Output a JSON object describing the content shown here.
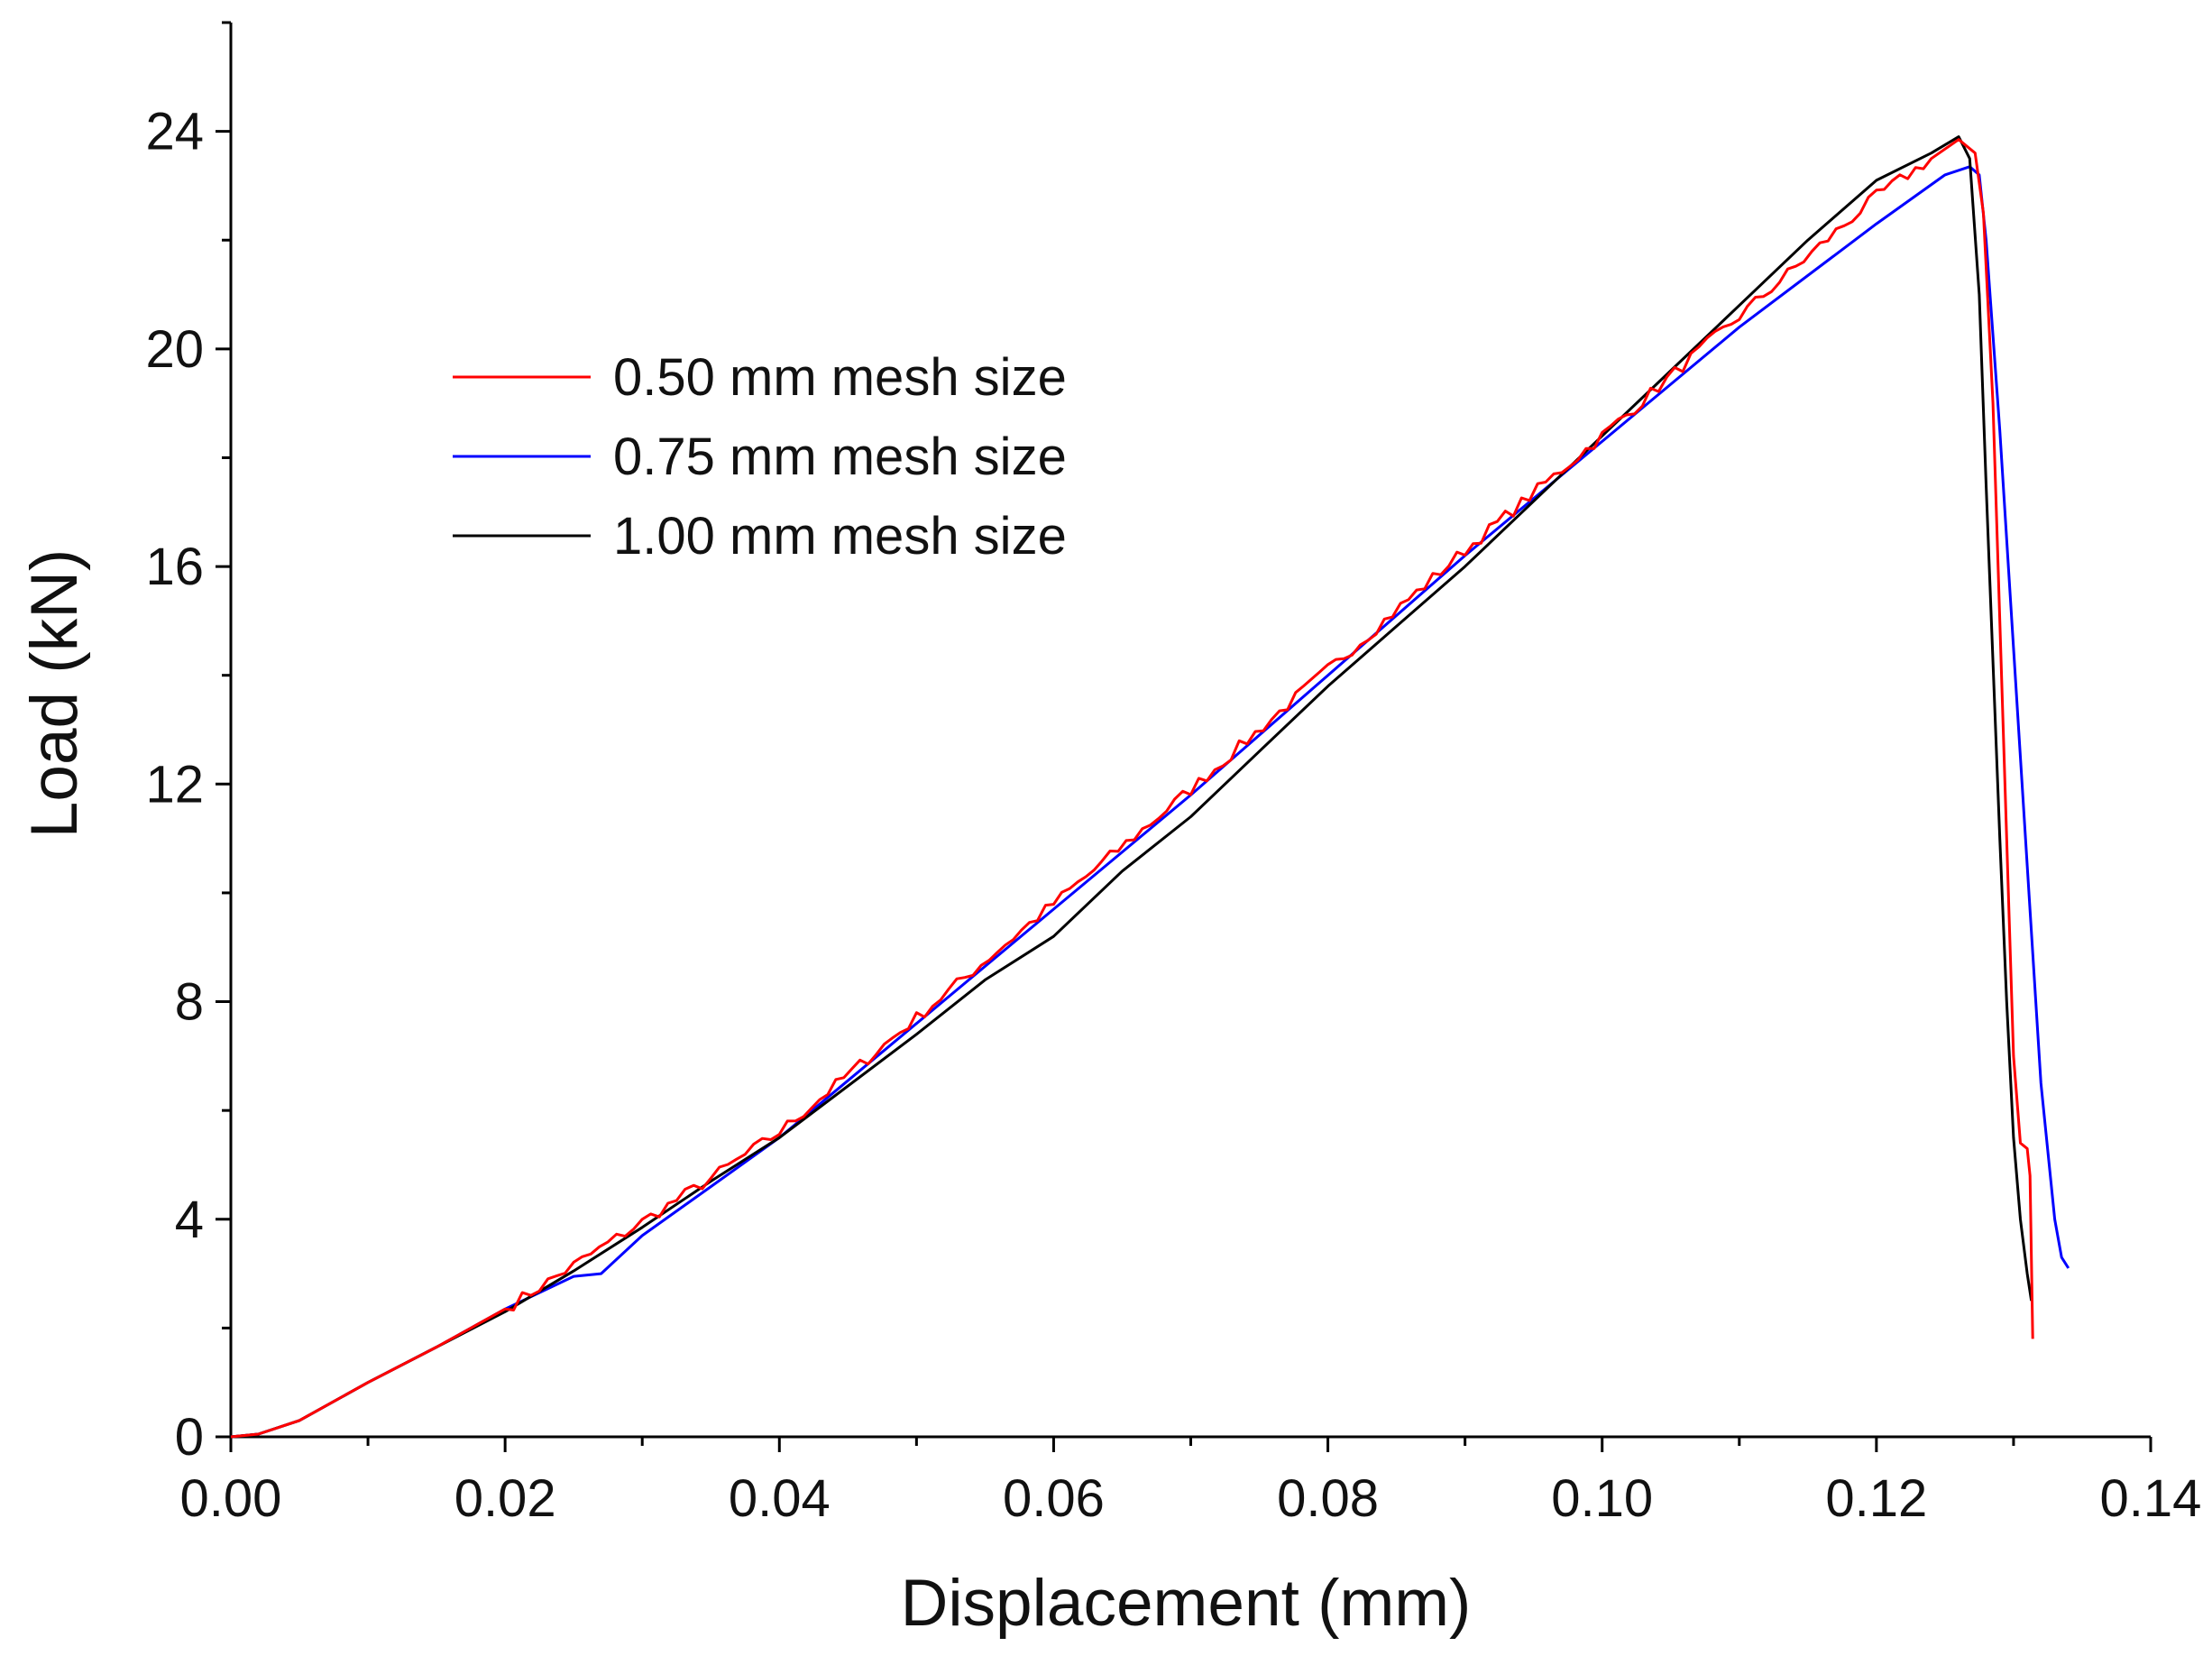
{
  "chart_data": {
    "type": "line",
    "title": "",
    "xlabel": "Displacement (mm)",
    "ylabel": "Load (kN)",
    "xlim": [
      0,
      0.14
    ],
    "ylim": [
      0,
      26
    ],
    "x_ticks": [
      0.0,
      0.02,
      0.04,
      0.06,
      0.08,
      0.1,
      0.12,
      0.14
    ],
    "x_tick_labels": [
      "0.00",
      "0.02",
      "0.04",
      "0.06",
      "0.08",
      "0.10",
      "0.12",
      "0.14"
    ],
    "y_ticks": [
      0,
      4,
      8,
      12,
      16,
      20,
      24
    ],
    "y_tick_labels": [
      "0",
      "4",
      "8",
      "12",
      "16",
      "20",
      "24"
    ],
    "x_minor_step": 0.01,
    "y_minor_step": 2,
    "grid": false,
    "legend_position": "upper-left",
    "series": [
      {
        "name": "0.50 mm mesh size",
        "color": "#ff0000",
        "noise": 0.12,
        "x": [
          0.0,
          0.002,
          0.005,
          0.01,
          0.015,
          0.02,
          0.025,
          0.03,
          0.035,
          0.04,
          0.05,
          0.06,
          0.07,
          0.08,
          0.09,
          0.1,
          0.11,
          0.12,
          0.124,
          0.126,
          0.1272,
          0.1278,
          0.1285,
          0.129,
          0.1295,
          0.13,
          0.1305,
          0.131,
          0.1312,
          0.1314
        ],
        "y": [
          0.0,
          0.05,
          0.3,
          1.0,
          1.65,
          2.35,
          3.15,
          3.95,
          4.75,
          5.6,
          7.7,
          9.8,
          11.9,
          14.1,
          16.3,
          18.4,
          20.6,
          22.8,
          23.5,
          23.85,
          23.6,
          22.5,
          19.0,
          15.0,
          11.0,
          7.0,
          5.4,
          5.3,
          4.8,
          1.8
        ]
      },
      {
        "name": "0.75 mm mesh size",
        "color": "#0000ff",
        "noise": 0,
        "x": [
          0.0,
          0.002,
          0.005,
          0.01,
          0.015,
          0.02,
          0.025,
          0.027,
          0.03,
          0.035,
          0.04,
          0.05,
          0.06,
          0.07,
          0.08,
          0.09,
          0.1,
          0.11,
          0.12,
          0.125,
          0.1268,
          0.1275,
          0.128,
          0.129,
          0.13,
          0.131,
          0.132,
          0.133,
          0.1335,
          0.134
        ],
        "y": [
          0.0,
          0.05,
          0.3,
          1.0,
          1.65,
          2.35,
          2.95,
          3.0,
          3.7,
          4.6,
          5.5,
          7.6,
          9.7,
          11.8,
          14.0,
          16.2,
          18.3,
          20.4,
          22.3,
          23.2,
          23.35,
          23.2,
          22.0,
          18.5,
          14.5,
          10.5,
          6.5,
          4.0,
          3.3,
          3.1
        ]
      },
      {
        "name": "1.00 mm mesh size",
        "color": "#000000",
        "noise": 0,
        "x": [
          0.0,
          0.002,
          0.005,
          0.01,
          0.015,
          0.02,
          0.025,
          0.03,
          0.035,
          0.04,
          0.05,
          0.055,
          0.06,
          0.065,
          0.07,
          0.075,
          0.08,
          0.085,
          0.09,
          0.095,
          0.1,
          0.105,
          0.11,
          0.115,
          0.12,
          0.124,
          0.126,
          0.1268,
          0.1275,
          0.128,
          0.129,
          0.1295,
          0.13,
          0.1305,
          0.131,
          0.1313
        ],
        "y": [
          0.0,
          0.05,
          0.3,
          1.0,
          1.65,
          2.3,
          3.05,
          3.85,
          4.7,
          5.5,
          7.4,
          8.4,
          9.2,
          10.4,
          11.4,
          12.6,
          13.8,
          14.9,
          16.0,
          17.2,
          18.4,
          19.6,
          20.8,
          22.0,
          23.1,
          23.6,
          23.9,
          23.5,
          21.0,
          17.5,
          11.0,
          8.0,
          5.5,
          4.0,
          3.0,
          2.5
        ]
      }
    ]
  }
}
